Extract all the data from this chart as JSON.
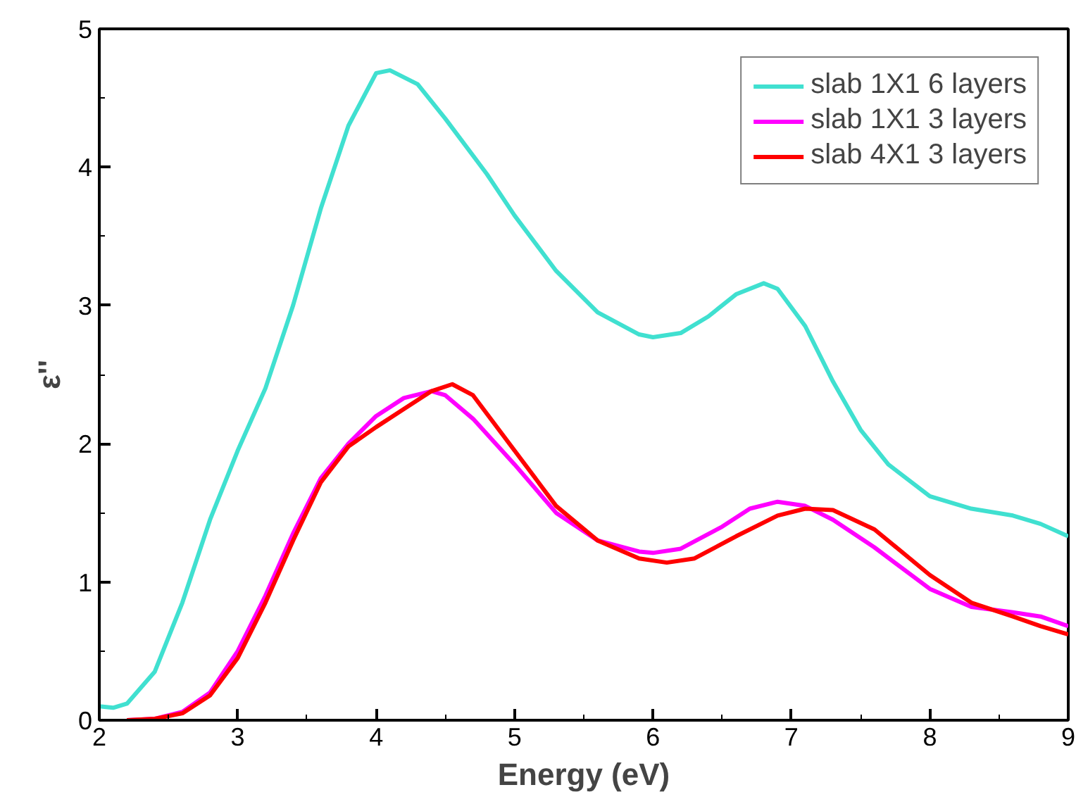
{
  "chart_data": {
    "type": "line",
    "xlabel": "Energy (eV)",
    "ylabel": "ε''",
    "xlim": [
      2,
      9
    ],
    "ylim": [
      0,
      5
    ],
    "xticks": [
      2,
      3,
      4,
      5,
      6,
      7,
      8,
      9
    ],
    "yticks": [
      0,
      1,
      2,
      3,
      4,
      5
    ],
    "grid": false,
    "legend": "top right",
    "marker": "none",
    "line_style": "solid",
    "series": [
      {
        "name": "slab 1X1 6 layers",
        "color": "#40e0d0",
        "x": [
          2.0,
          2.1,
          2.2,
          2.4,
          2.6,
          2.8,
          3.0,
          3.2,
          3.4,
          3.6,
          3.8,
          4.0,
          4.1,
          4.3,
          4.5,
          4.8,
          5.0,
          5.3,
          5.6,
          5.9,
          6.0,
          6.2,
          6.4,
          6.6,
          6.8,
          6.9,
          7.1,
          7.3,
          7.5,
          7.7,
          8.0,
          8.3,
          8.6,
          8.8,
          9.0
        ],
        "values": [
          0.1,
          0.09,
          0.12,
          0.35,
          0.85,
          1.45,
          1.95,
          2.4,
          3.0,
          3.7,
          4.3,
          4.68,
          4.7,
          4.6,
          4.35,
          3.95,
          3.65,
          3.25,
          2.95,
          2.79,
          2.77,
          2.8,
          2.92,
          3.08,
          3.16,
          3.12,
          2.85,
          2.45,
          2.1,
          1.85,
          1.62,
          1.53,
          1.48,
          1.42,
          1.33
        ]
      },
      {
        "name": "slab 1X1 3 layers",
        "color": "#ff00ff",
        "x": [
          2.2,
          2.4,
          2.6,
          2.8,
          3.0,
          3.2,
          3.4,
          3.6,
          3.8,
          4.0,
          4.2,
          4.4,
          4.5,
          4.7,
          5.0,
          5.3,
          5.6,
          5.9,
          6.0,
          6.2,
          6.5,
          6.7,
          6.9,
          7.1,
          7.3,
          7.6,
          8.0,
          8.3,
          8.6,
          8.8,
          9.0
        ],
        "values": [
          0,
          0.01,
          0.06,
          0.2,
          0.5,
          0.9,
          1.35,
          1.75,
          2.0,
          2.2,
          2.33,
          2.38,
          2.35,
          2.18,
          1.85,
          1.5,
          1.3,
          1.22,
          1.21,
          1.24,
          1.4,
          1.53,
          1.58,
          1.55,
          1.45,
          1.25,
          0.95,
          0.82,
          0.78,
          0.75,
          0.68
        ]
      },
      {
        "name": "slab 4X1 3 layers",
        "color": "#ff0000",
        "x": [
          2.2,
          2.4,
          2.6,
          2.8,
          3.0,
          3.2,
          3.4,
          3.6,
          3.8,
          4.0,
          4.2,
          4.4,
          4.55,
          4.7,
          5.0,
          5.3,
          5.6,
          5.9,
          6.1,
          6.3,
          6.6,
          6.9,
          7.1,
          7.3,
          7.6,
          8.0,
          8.3,
          8.6,
          8.8,
          9.0
        ],
        "values": [
          0,
          0.01,
          0.05,
          0.18,
          0.45,
          0.85,
          1.3,
          1.72,
          1.98,
          2.12,
          2.25,
          2.38,
          2.43,
          2.35,
          1.95,
          1.55,
          1.3,
          1.17,
          1.14,
          1.17,
          1.33,
          1.48,
          1.53,
          1.52,
          1.38,
          1.05,
          0.85,
          0.75,
          0.68,
          0.62
        ]
      }
    ]
  }
}
